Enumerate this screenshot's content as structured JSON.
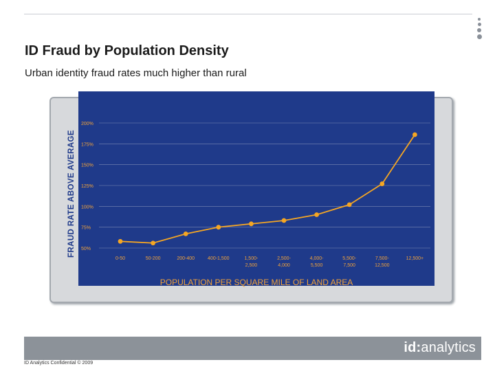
{
  "title": "ID Fraud by Population Density",
  "subtitle": "Urban identity fraud rates much higher than rural",
  "footer": {
    "confidential": "ID Analytics Confidential © 2009",
    "logo_prefix": "id:",
    "logo_suffix": "analytics"
  },
  "colors": {
    "plot_background": "#1f3a8a",
    "line": "#f5a623",
    "axis_label": "#f2a33a",
    "ylabel": "#1f3a8a"
  },
  "chart_data": {
    "type": "line",
    "title": "",
    "xlabel": "POPULATION PER SQUARE MILE OF LAND AREA",
    "ylabel": "FRAUD RATE ABOVE AVERAGE",
    "categories": [
      [
        "0-50"
      ],
      [
        "50-200"
      ],
      [
        "200-400"
      ],
      [
        "400-1,500"
      ],
      [
        "1,500-",
        "2,500"
      ],
      [
        "2,500-",
        "4,000"
      ],
      [
        "4,000-",
        "5,500"
      ],
      [
        "5,500-",
        "7,500"
      ],
      [
        "7,500-",
        "12,500"
      ],
      [
        "12,500+"
      ]
    ],
    "yticks": [
      "50%",
      "75%",
      "100%",
      "125%",
      "150%",
      "175%",
      "200%"
    ],
    "ylim": [
      50,
      200
    ],
    "grid": true,
    "series": [
      {
        "name": "Fraud rate",
        "values": [
          58,
          56,
          67,
          75,
          79,
          83,
          90,
          102,
          127,
          186
        ]
      }
    ]
  }
}
